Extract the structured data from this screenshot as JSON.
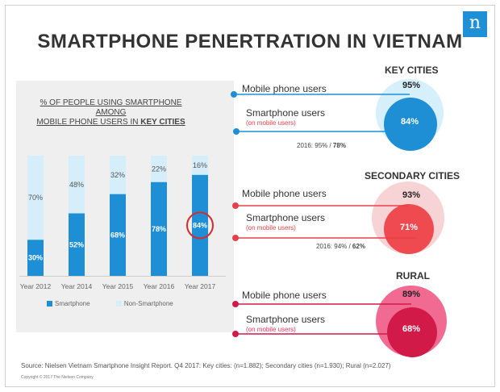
{
  "title": "SMARTPHONE PENERTRATION IN VIETNAM",
  "logo": "n",
  "colors": {
    "smartphone": "#1e8fd5",
    "non_smartphone": "#d6eefa",
    "red": "#e8404a",
    "pink": "#e0335f",
    "highlight": "#d82a2a"
  },
  "chart_data": {
    "type": "bar",
    "stacked": true,
    "title_lines": [
      "% OF PEOPLE USING SMARTPHONE",
      "AMONG"
    ],
    "title_last_prefix": "MOBILE PHONE USERS IN ",
    "title_last_bold": "KEY CITIES",
    "categories": [
      "Year 2012",
      "Year 2014",
      "Year 2015",
      "Year 2016",
      "Year 2017"
    ],
    "series": [
      {
        "name": "Smartphone",
        "values": [
          30,
          52,
          68,
          78,
          84
        ],
        "labels": [
          "30%",
          "52%",
          "68%",
          "78%",
          "84%"
        ]
      },
      {
        "name": "Non-Smartphone",
        "values": [
          70,
          48,
          32,
          22,
          16
        ],
        "labels": [
          "70%",
          "48%",
          "32%",
          "22%",
          "16%"
        ]
      }
    ],
    "highlight_index": 4,
    "ylim": [
      0,
      100
    ],
    "legend_position": "bottom"
  },
  "regions": [
    {
      "title": "KEY CITIES",
      "style": "blue",
      "mobile_label": "Mobile phone users",
      "mobile_pct": "95%",
      "mobile_value": 95,
      "smart_label": "Smartphone users",
      "smart_sub": "(on mobile users)",
      "smart_pct": "84%",
      "smart_value": 84,
      "prev_prefix": "2016: 95% / ",
      "prev_bold": "78%"
    },
    {
      "title": "SECONDARY CITIES",
      "style": "red",
      "mobile_label": "Mobile phone users",
      "mobile_pct": "93%",
      "mobile_value": 93,
      "smart_label": "Smartphone users",
      "smart_sub": "(on mobile users)",
      "smart_pct": "71%",
      "smart_value": 71,
      "prev_prefix": "2016: 94% / ",
      "prev_bold": "62%"
    },
    {
      "title": "RURAL",
      "style": "pink",
      "mobile_label": "Mobile phone users",
      "mobile_pct": "89%",
      "mobile_value": 89,
      "smart_label": "Smartphone users",
      "smart_sub": "(on mobile users)",
      "smart_pct": "68%",
      "smart_value": 68
    }
  ],
  "source": "Source: Nielsen Vietnam Smartphone Insight Report. Q4 2017: Key cities:  (n=1.882); Secondary cities (n=1.930); Rural (n=2.027)",
  "copyright": "Copyright © 2017 The Nielsen Company"
}
